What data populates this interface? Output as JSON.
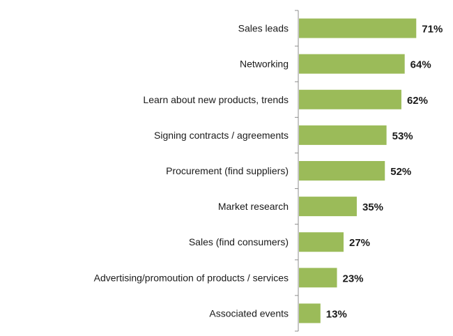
{
  "chart_data": {
    "type": "bar",
    "orientation": "horizontal",
    "categories": [
      "Sales leads",
      "Networking",
      "Learn about new products, trends",
      "Signing contracts / agreements",
      "Procurement (find suppliers)",
      "Market research",
      "Sales (find consumers)",
      "Advertising/promoution of products / services",
      "Associated events"
    ],
    "values": [
      71,
      64,
      62,
      53,
      52,
      35,
      27,
      23,
      13
    ],
    "value_labels": [
      "71%",
      "64%",
      "62%",
      "53%",
      "52%",
      "35%",
      "27%",
      "23%",
      "13%"
    ],
    "title": "",
    "xlabel": "",
    "ylabel": "",
    "xlim": [
      0,
      100
    ],
    "grid": false,
    "legend": "none",
    "bar_color": "#9bbb59"
  }
}
